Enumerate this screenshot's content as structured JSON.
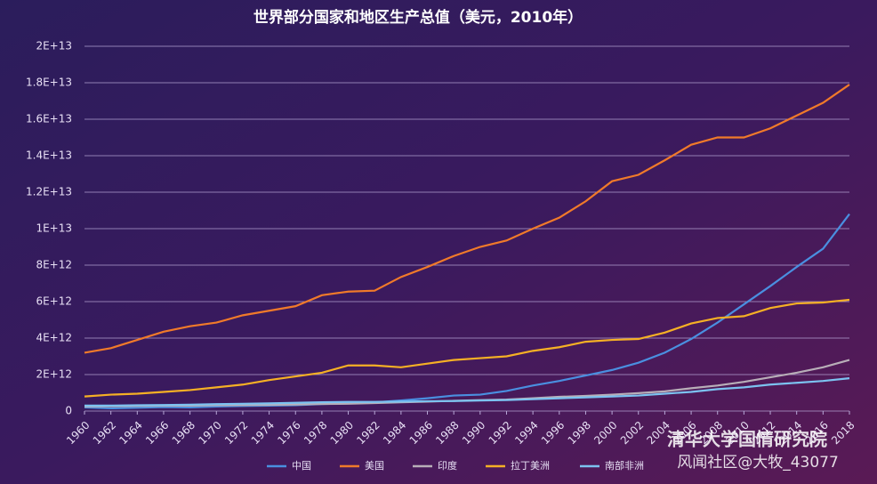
{
  "chart_data": {
    "type": "line",
    "title": "世界部分国家和地区生产总值（美元，2010年）",
    "x": [
      1960,
      1962,
      1964,
      1966,
      1968,
      1970,
      1972,
      1974,
      1976,
      1978,
      1980,
      1982,
      1984,
      1986,
      1988,
      1990,
      1992,
      1994,
      1996,
      1998,
      2000,
      2002,
      2004,
      2006,
      2008,
      2010,
      2012,
      2014,
      2016,
      2018
    ],
    "xlim": [
      1960,
      2018
    ],
    "xticks": [
      1960,
      1962,
      1964,
      1966,
      1968,
      1970,
      1972,
      1974,
      1976,
      1978,
      1980,
      1982,
      1984,
      1986,
      1988,
      1990,
      1992,
      1994,
      1996,
      1998,
      2000,
      2002,
      2004,
      2006,
      2008,
      2010,
      2012,
      2014,
      2016,
      2018
    ],
    "ylim": [
      0,
      20000000000000.0
    ],
    "yticks": [
      0,
      {
        "value": 2000000000000.0,
        "label": "2E+12"
      },
      {
        "value": 4000000000000.0,
        "label": "4E+12"
      },
      {
        "value": 6000000000000.0,
        "label": "6E+12"
      },
      {
        "value": 8000000000000.0,
        "label": "8E+12"
      },
      {
        "value": 10000000000000.0,
        "label": "1E+13"
      },
      {
        "value": 12000000000000.0,
        "label": "1.2E+13"
      },
      {
        "value": 14000000000000.0,
        "label": "1.4E+13"
      },
      {
        "value": 16000000000000.0,
        "label": "1.6E+13"
      },
      {
        "value": 18000000000000.0,
        "label": "1.8E+13"
      },
      {
        "value": 20000000000000.0,
        "label": "2E+13"
      }
    ],
    "grid": true,
    "legend": "bottom",
    "series": [
      {
        "name": "中国",
        "color": "#4a8fe0",
        "values": [
          200000000000.0,
          150000000000.0,
          180000000000.0,
          220000000000.0,
          200000000000.0,
          250000000000.0,
          280000000000.0,
          300000000000.0,
          320000000000.0,
          380000000000.0,
          420000000000.0,
          480000000000.0,
          580000000000.0,
          700000000000.0,
          850000000000.0,
          900000000000.0,
          1100000000000.0,
          1400000000000.0,
          1650000000000.0,
          1950000000000.0,
          2250000000000.0,
          2650000000000.0,
          3200000000000.0,
          3950000000000.0,
          4850000000000.0,
          5850000000000.0,
          6850000000000.0,
          7900000000000.0,
          8900000000000.0,
          10800000000000.0
        ]
      },
      {
        "name": "美国",
        "color": "#f07a2a",
        "values": [
          3200000000000.0,
          3450000000000.0,
          3900000000000.0,
          4350000000000.0,
          4650000000000.0,
          4850000000000.0,
          5250000000000.0,
          5500000000000.0,
          5750000000000.0,
          6350000000000.0,
          6550000000000.0,
          6600000000000.0,
          7350000000000.0,
          7900000000000.0,
          8500000000000.0,
          9000000000000.0,
          9350000000000.0,
          10000000000000.0,
          10600000000000.0,
          11500000000000.0,
          12600000000000.0,
          12950000000000.0,
          13750000000000.0,
          14600000000000.0,
          15000000000000.0,
          15000000000000.0,
          15500000000000.0,
          16200000000000.0,
          16900000000000.0,
          17900000000000.0
        ]
      },
      {
        "name": "印度",
        "color": "#b8aeb8",
        "values": [
          250000000000.0,
          260000000000.0,
          280000000000.0,
          290000000000.0,
          300000000000.0,
          320000000000.0,
          330000000000.0,
          340000000000.0,
          360000000000.0,
          390000000000.0,
          400000000000.0,
          440000000000.0,
          480000000000.0,
          520000000000.0,
          560000000000.0,
          600000000000.0,
          630000000000.0,
          700000000000.0,
          780000000000.0,
          830000000000.0,
          900000000000.0,
          980000000000.0,
          1080000000000.0,
          1250000000000.0,
          1400000000000.0,
          1600000000000.0,
          1850000000000.0,
          2100000000000.0,
          2400000000000.0,
          2800000000000.0
        ]
      },
      {
        "name": "拉丁美洲",
        "color": "#f5b025",
        "values": [
          800000000000.0,
          900000000000.0,
          950000000000.0,
          1050000000000.0,
          1150000000000.0,
          1300000000000.0,
          1450000000000.0,
          1700000000000.0,
          1900000000000.0,
          2100000000000.0,
          2500000000000.0,
          2500000000000.0,
          2400000000000.0,
          2600000000000.0,
          2800000000000.0,
          2900000000000.0,
          3000000000000.0,
          3300000000000.0,
          3500000000000.0,
          3800000000000.0,
          3900000000000.0,
          3950000000000.0,
          4300000000000.0,
          4800000000000.0,
          5100000000000.0,
          5200000000000.0,
          5650000000000.0,
          5900000000000.0,
          5950000000000.0,
          6100000000000.0
        ]
      },
      {
        "name": "南部非洲",
        "color": "#7cc2f0",
        "values": [
          300000000000.0,
          300000000000.0,
          320000000000.0,
          330000000000.0,
          350000000000.0,
          380000000000.0,
          400000000000.0,
          420000000000.0,
          450000000000.0,
          480000000000.0,
          500000000000.0,
          500000000000.0,
          520000000000.0,
          540000000000.0,
          550000000000.0,
          580000000000.0,
          600000000000.0,
          650000000000.0,
          700000000000.0,
          750000000000.0,
          800000000000.0,
          850000000000.0,
          950000000000.0,
          1050000000000.0,
          1200000000000.0,
          1300000000000.0,
          1450000000000.0,
          1550000000000.0,
          1650000000000.0,
          1800000000000.0
        ]
      }
    ],
    "annotations": [
      "清华大学国情研究院",
      "风闻社区@大牧_43077"
    ]
  }
}
